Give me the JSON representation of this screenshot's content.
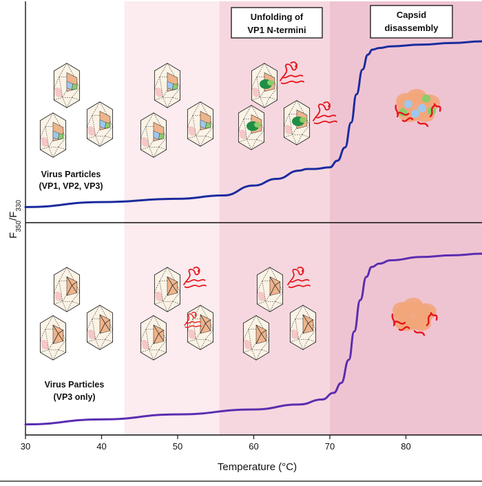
{
  "chart_data": {
    "type": "line",
    "xlabel": "Temperature (°C)",
    "ylabel_main": "F",
    "ylabel_sub1": "350",
    "ylabel_sep": "/F",
    "ylabel_sub2": "330",
    "xlim": [
      30,
      90
    ],
    "xticks": [
      "30",
      "40",
      "50",
      "60",
      "70",
      "80"
    ],
    "panels": [
      {
        "name": "top",
        "label_line1": "Virus Particles",
        "label_line2": "(VP1, VP2, VP3)",
        "line_color": "#1a2b9e",
        "x": [
          30,
          40,
          50,
          56,
          60,
          63,
          66,
          67,
          68,
          70,
          71,
          72,
          72.8,
          73.5,
          74.3,
          75,
          75.6,
          76.5,
          78,
          82,
          86,
          90
        ],
        "y": [
          0.04,
          0.07,
          0.09,
          0.11,
          0.17,
          0.21,
          0.26,
          0.27,
          0.27,
          0.28,
          0.32,
          0.4,
          0.55,
          0.72,
          0.87,
          0.96,
          0.99,
          1.0,
          1.01,
          1.02,
          1.03,
          1.04
        ]
      },
      {
        "name": "bottom",
        "label_line1": "Virus Particles",
        "label_line2": "(VP3 only)",
        "line_color": "#5a2db0",
        "x": [
          30,
          40,
          50,
          60,
          66,
          69,
          70.5,
          71.5,
          72.5,
          73.2,
          74,
          74.8,
          75.5,
          76.5,
          78,
          82,
          86,
          90
        ],
        "y": [
          0.01,
          0.04,
          0.07,
          0.1,
          0.13,
          0.16,
          0.2,
          0.26,
          0.4,
          0.57,
          0.76,
          0.9,
          0.96,
          0.98,
          1.0,
          1.02,
          1.03,
          1.04
        ]
      }
    ],
    "regions": [
      {
        "name": "native",
        "x0": 30,
        "x1": 43,
        "color": "#ffffff"
      },
      {
        "name": "pre-transition",
        "x0": 43,
        "x1": 55.5,
        "color": "#fcebef"
      },
      {
        "name": "vp1-unfolding",
        "x0": 55.5,
        "x1": 70,
        "color": "#f6d7df"
      },
      {
        "name": "disassembly",
        "x0": 70,
        "x1": 90,
        "color": "#efc4d2"
      }
    ]
  },
  "annotations": {
    "unfolding_line1": "Unfolding of",
    "unfolding_line2": "VP1 N-termini",
    "capsid_line1": "Capsid",
    "capsid_line2": "disassembly"
  },
  "colors": {
    "capsid_fill": "#fbf3e6",
    "face_orange": "#eeb48c",
    "vp1_blue": "#9ec7ee",
    "vp2_green": "#8ccc6a",
    "vp1_dark_green": "#1f8f45",
    "nterm_red": "#e8141b",
    "aggregate_orange": "#f2a67a"
  },
  "icons": {
    "capsid": "icosahedral-capsid-icon",
    "nterminus": "unfolded-n-terminus-icon",
    "aggregate": "disassembled-capsid-icon"
  }
}
